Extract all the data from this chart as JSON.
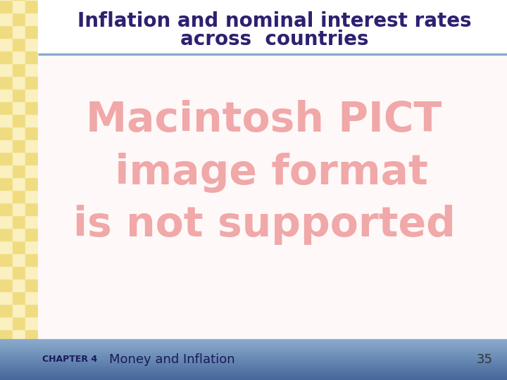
{
  "title_line1": "Inflation and nominal interest rates",
  "title_line2": "across  countries",
  "title_color": "#2e2070",
  "title_fontsize": 20,
  "placeholder_line1": "Macintosh PICT",
  "placeholder_line2": " image format",
  "placeholder_line3": "is not supported",
  "placeholder_color": "#f0a8a8",
  "placeholder_fontsize": 42,
  "footer_text_left": "CHAPTER 4",
  "footer_text_right": "Money and Inflation",
  "footer_page": "35",
  "footer_bg_top": "#8aaacc",
  "footer_bg_bottom": "#5577aa",
  "footer_text_color": "#1a1a5a",
  "footer_page_color": "#333333",
  "bg_color": "#ffffff",
  "left_stripe_light": "#faf0c0",
  "left_stripe_dark": "#f0dc80",
  "content_bg": "#fff8f8",
  "separator_color": "#8aaacc",
  "slide_bg": "#ffffff",
  "title_bg": "#ffffff"
}
